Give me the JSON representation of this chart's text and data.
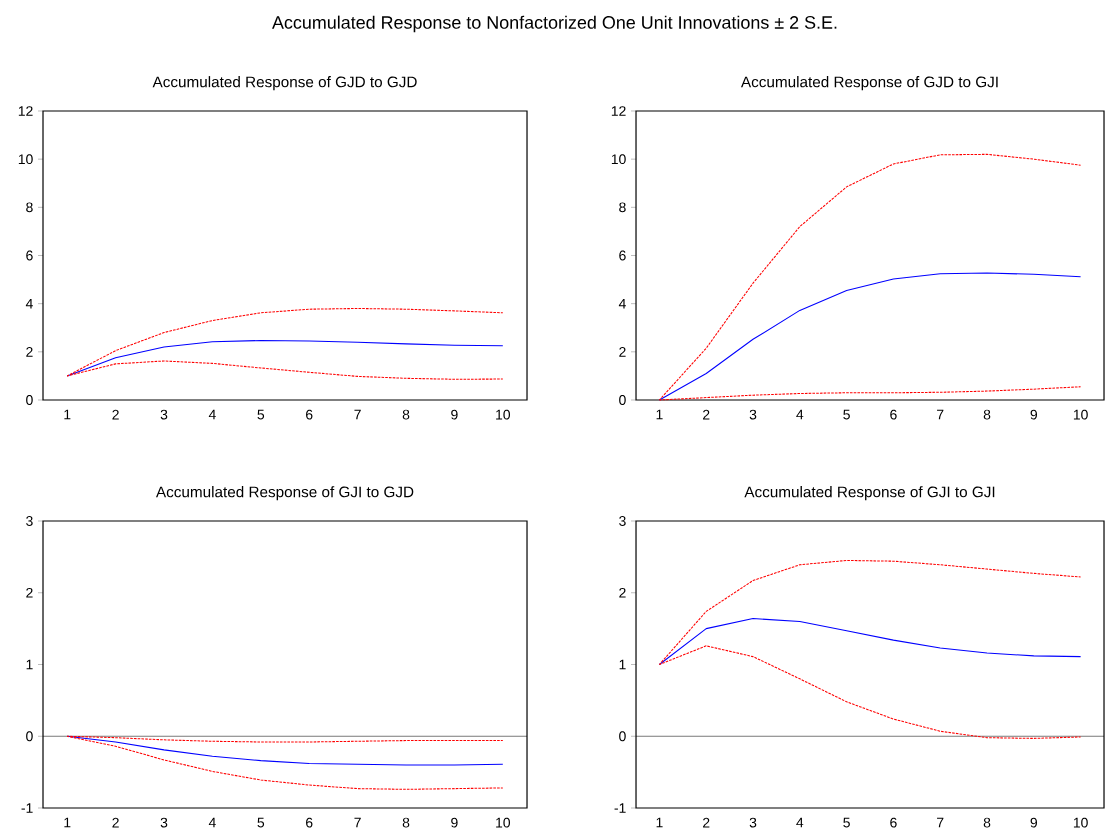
{
  "chart_data": [
    {
      "type": "line",
      "title": "Accumulated Response of GJD to GJD",
      "annotations": [
        "Accumulated Response to Nonfactorized One Unit Innovations ± 2 S.E."
      ],
      "categories": [
        "1",
        "2",
        "3",
        "4",
        "5",
        "6",
        "7",
        "8",
        "9",
        "10"
      ],
      "ylim": [
        0,
        12
      ],
      "yticks": [
        0,
        2,
        4,
        6,
        8,
        10,
        12
      ],
      "grid": false,
      "series": [
        {
          "color": "#0000ff",
          "line_style": "solid",
          "values": [
            1.0,
            1.75,
            2.2,
            2.42,
            2.47,
            2.45,
            2.4,
            2.33,
            2.27,
            2.25
          ]
        },
        {
          "color": "#ff0000",
          "line_style": "dashed",
          "values": [
            1.0,
            2.05,
            2.8,
            3.3,
            3.62,
            3.77,
            3.8,
            3.77,
            3.7,
            3.62
          ]
        },
        {
          "color": "#ff0000",
          "line_style": "dashed",
          "values": [
            1.0,
            1.5,
            1.62,
            1.52,
            1.33,
            1.15,
            0.98,
            0.9,
            0.86,
            0.87
          ]
        }
      ]
    },
    {
      "type": "line",
      "title": "Accumulated Response of GJD to GJI",
      "categories": [
        "1",
        "2",
        "3",
        "4",
        "5",
        "6",
        "7",
        "8",
        "9",
        "10"
      ],
      "ylim": [
        0,
        12
      ],
      "yticks": [
        0,
        2,
        4,
        6,
        8,
        10,
        12
      ],
      "grid": false,
      "series": [
        {
          "color": "#0000ff",
          "line_style": "solid",
          "values": [
            0.0,
            1.1,
            2.52,
            3.72,
            4.55,
            5.02,
            5.24,
            5.27,
            5.22,
            5.12
          ]
        },
        {
          "color": "#ff0000",
          "line_style": "dashed",
          "values": [
            0.0,
            2.15,
            4.85,
            7.2,
            8.85,
            9.8,
            10.18,
            10.2,
            10.0,
            9.75
          ]
        },
        {
          "color": "#ff0000",
          "line_style": "dashed",
          "values": [
            0.0,
            0.1,
            0.2,
            0.27,
            0.3,
            0.3,
            0.32,
            0.37,
            0.45,
            0.55
          ]
        }
      ]
    },
    {
      "type": "line",
      "title": "Accumulated Response of GJI to GJD",
      "categories": [
        "1",
        "2",
        "3",
        "4",
        "5",
        "6",
        "7",
        "8",
        "9",
        "10"
      ],
      "ylim": [
        -1,
        3
      ],
      "yticks": [
        -1,
        0,
        1,
        2,
        3
      ],
      "grid": false,
      "ref_lines": [
        {
          "axis": "y",
          "value": 0,
          "color": "#000000"
        }
      ],
      "series": [
        {
          "color": "#0000ff",
          "line_style": "solid",
          "values": [
            0.0,
            -0.08,
            -0.19,
            -0.28,
            -0.34,
            -0.38,
            -0.39,
            -0.4,
            -0.4,
            -0.39
          ]
        },
        {
          "color": "#ff0000",
          "line_style": "dashed",
          "values": [
            0.0,
            -0.02,
            -0.05,
            -0.07,
            -0.08,
            -0.08,
            -0.07,
            -0.06,
            -0.06,
            -0.06
          ]
        },
        {
          "color": "#ff0000",
          "line_style": "dashed",
          "values": [
            0.0,
            -0.14,
            -0.33,
            -0.49,
            -0.61,
            -0.68,
            -0.73,
            -0.74,
            -0.73,
            -0.72
          ]
        }
      ]
    },
    {
      "type": "line",
      "title": "Accumulated Response of GJI to GJI",
      "categories": [
        "1",
        "2",
        "3",
        "4",
        "5",
        "6",
        "7",
        "8",
        "9",
        "10"
      ],
      "ylim": [
        -1,
        3
      ],
      "yticks": [
        -1,
        0,
        1,
        2,
        3
      ],
      "grid": false,
      "ref_lines": [
        {
          "axis": "y",
          "value": 0,
          "color": "#000000"
        }
      ],
      "series": [
        {
          "color": "#0000ff",
          "line_style": "solid",
          "values": [
            1.0,
            1.5,
            1.64,
            1.6,
            1.47,
            1.34,
            1.23,
            1.16,
            1.12,
            1.11
          ]
        },
        {
          "color": "#ff0000",
          "line_style": "dashed",
          "values": [
            1.0,
            1.74,
            2.17,
            2.39,
            2.45,
            2.44,
            2.39,
            2.33,
            2.27,
            2.22
          ]
        },
        {
          "color": "#ff0000",
          "line_style": "dashed",
          "values": [
            1.0,
            1.26,
            1.11,
            0.8,
            0.48,
            0.24,
            0.07,
            -0.02,
            -0.03,
            -0.01
          ]
        }
      ]
    }
  ]
}
